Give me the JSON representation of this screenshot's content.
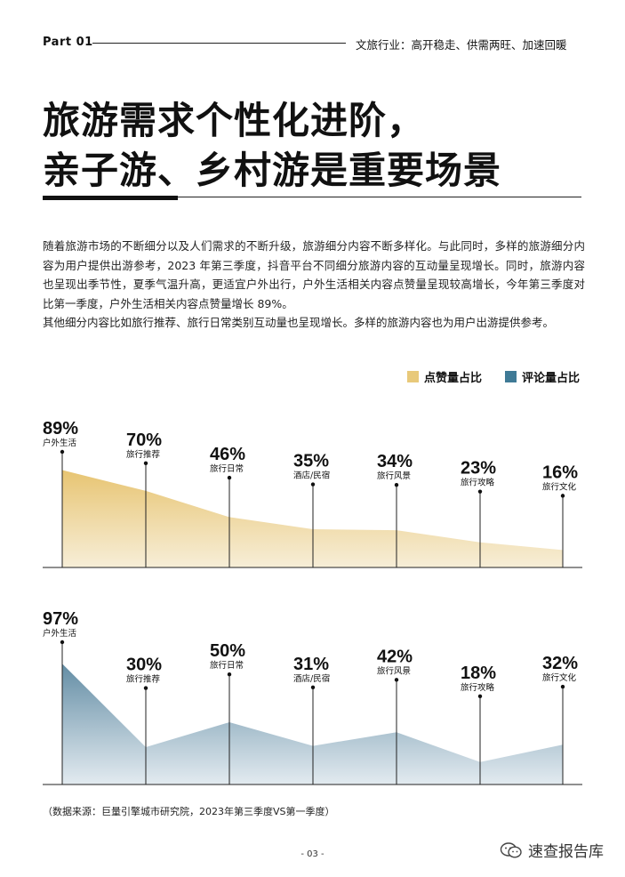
{
  "header": {
    "part": "Part 01",
    "section": "文旅行业：高开稳走、供需两旺、加速回暖"
  },
  "title": {
    "line1": "旅游需求个性化进阶，",
    "line2": "亲子游、乡村游是重要场景"
  },
  "body": {
    "paragraph1": "随着旅游市场的不断细分以及人们需求的不断升级，旅游细分内容不断多样化。与此同时，多样的旅游细分内容为用户提供出游参考，2023 年第三季度，抖音平台不同细分旅游内容的互动量呈现增长。同时，旅游内容也呈现出季节性，夏季气温升高，更适宜户外出行，户外生活相关内容点赞量呈现较高增长，今年第三季度对比第一季度，户外生活相关内容点赞量增长 89%。",
    "paragraph2": "其他细分内容比如旅行推荐、旅行日常类别互动量也呈现增长。多样的旅游内容也为用户出游提供参考。"
  },
  "legend": {
    "likes": "点赞量占比",
    "comments": "评论量占比"
  },
  "colors": {
    "likes": "#e8c97a",
    "comments": "#3f7a96"
  },
  "chart_data": [
    {
      "type": "area",
      "series_name": "点赞量占比",
      "categories": [
        "户外生活",
        "旅行推荐",
        "旅行日常",
        "酒店/民宿",
        "旅行风景",
        "旅行攻略",
        "旅行文化"
      ],
      "values": [
        89,
        70,
        46,
        35,
        34,
        23,
        16
      ],
      "labels": [
        "89%",
        "70%",
        "46%",
        "35%",
        "34%",
        "23%",
        "16%"
      ],
      "ylim": [
        0,
        100
      ]
    },
    {
      "type": "area",
      "series_name": "评论量占比",
      "categories": [
        "户外生活",
        "旅行推荐",
        "旅行日常",
        "酒店/民宿",
        "旅行风景",
        "旅行攻略",
        "旅行文化"
      ],
      "values": [
        97,
        30,
        50,
        31,
        42,
        18,
        32
      ],
      "labels": [
        "97%",
        "30%",
        "50%",
        "31%",
        "42%",
        "18%",
        "32%"
      ],
      "ylim": [
        0,
        100
      ]
    }
  ],
  "footer": {
    "source": "（数据来源：巨量引擎城市研究院，2023年第三季度VS第一季度）",
    "page": "- 03 -",
    "watermark": "速查报告库"
  }
}
